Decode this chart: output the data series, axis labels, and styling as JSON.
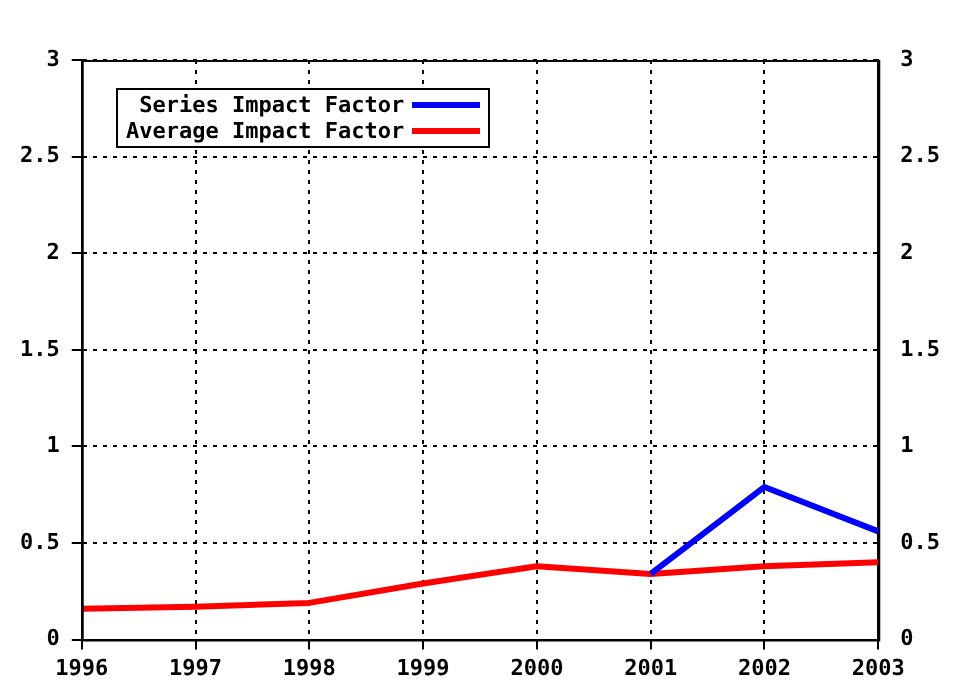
{
  "chart_data": {
    "type": "line",
    "categories": [
      "1996",
      "1997",
      "1998",
      "1999",
      "2000",
      "2001",
      "2002",
      "2003"
    ],
    "series": [
      {
        "name": "Series Impact Factor",
        "color": "#0000ff",
        "values": [
          null,
          null,
          null,
          null,
          null,
          0.34,
          0.79,
          0.56
        ]
      },
      {
        "name": "Average Impact Factor",
        "color": "#ff0000",
        "values": [
          0.16,
          0.17,
          0.19,
          0.29,
          0.38,
          0.34,
          0.38,
          0.4
        ]
      }
    ],
    "ylim": [
      0,
      3
    ],
    "yticks": [
      0,
      0.5,
      1,
      1.5,
      2,
      2.5,
      3
    ],
    "y2lim": [
      0,
      3
    ],
    "y2ticks": [
      0,
      0.5,
      1,
      1.5,
      2,
      2.5,
      3
    ],
    "grid": true,
    "legend": "top left",
    "marker": "none",
    "line_style": "solid"
  }
}
